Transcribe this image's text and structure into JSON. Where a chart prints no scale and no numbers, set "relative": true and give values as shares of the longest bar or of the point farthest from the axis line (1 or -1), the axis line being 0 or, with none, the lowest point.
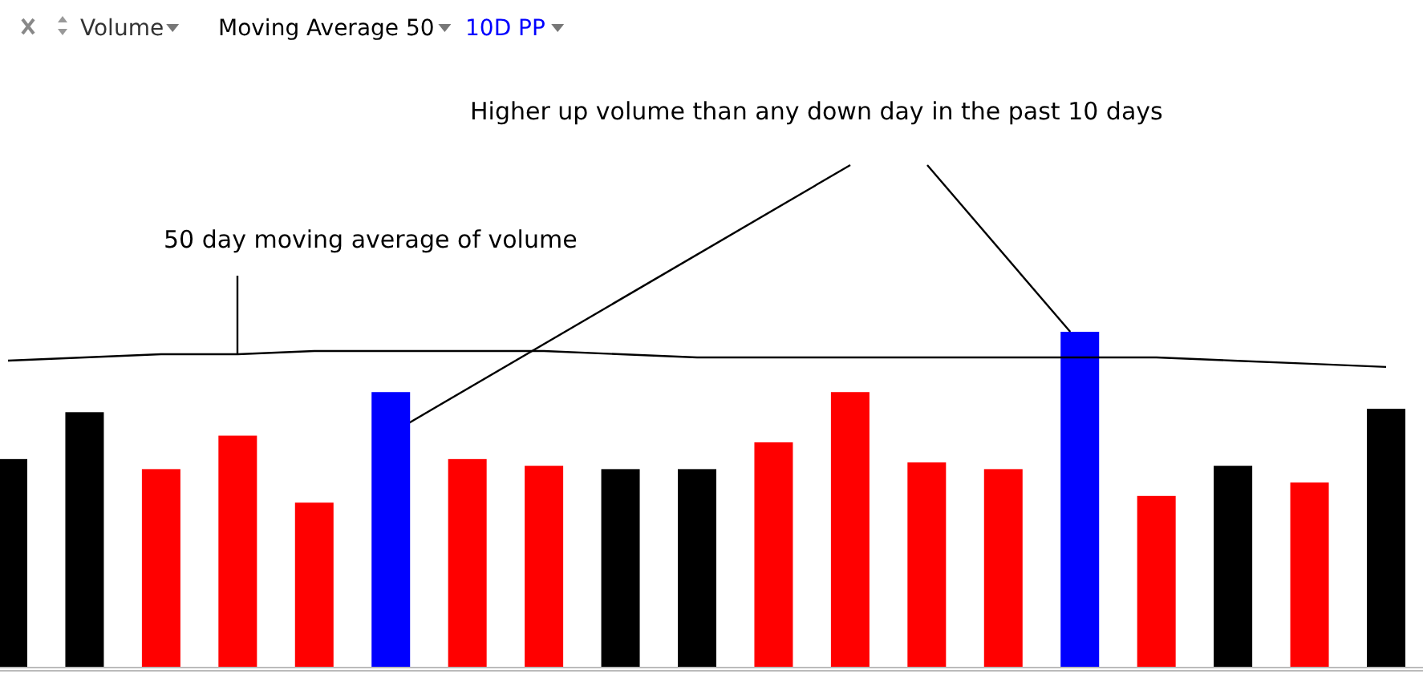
{
  "chart_data": [
    {
      "type": "bar",
      "relative": true,
      "categories": [
        null,
        null,
        null,
        null,
        null,
        null,
        null,
        null,
        null,
        null,
        null,
        null,
        null,
        null,
        null,
        null,
        null,
        null,
        null
      ],
      "series": [
        {
          "name": "Volume",
          "colors": [
            "#000000",
            "#000000",
            "#ff0000",
            "#ff0000",
            "#ff0000",
            "#0000ff",
            "#ff0000",
            "#ff0000",
            "#000000",
            "#000000",
            "#ff0000",
            "#ff0000",
            "#ff0000",
            "#ff0000",
            "#0000ff",
            "#ff0000",
            "#000000",
            "#ff0000",
            "#000000"
          ],
          "values": [
            0.62,
            0.76,
            0.59,
            0.69,
            0.49,
            0.82,
            0.62,
            0.6,
            0.59,
            0.59,
            0.67,
            0.82,
            0.61,
            0.59,
            1,
            0.51,
            0.6,
            0.55,
            0.77
          ]
        }
      ],
      "legend": "top left",
      "annotations": [
        "10D PP",
        "Higher up volume than any down day in the past 10 days"
      ]
    },
    {
      "type": "line",
      "relative": true,
      "categories": [
        null,
        null,
        null,
        null,
        null,
        null,
        null,
        null,
        null,
        null,
        null,
        null,
        null,
        null,
        null,
        null,
        null,
        null,
        null
      ],
      "series": [
        {
          "name": "Moving Average 50",
          "color": "#000000",
          "values": [
            0.97,
            0.98,
            0.99,
            0.99,
            1,
            1,
            1,
            1,
            0.99,
            0.98,
            0.98,
            0.98,
            0.98,
            0.98,
            0.98,
            0.98,
            0.97,
            0.96,
            0.95
          ]
        }
      ],
      "legend": "top left",
      "annotations": [
        "50 day moving average of volume"
      ]
    }
  ]
}
